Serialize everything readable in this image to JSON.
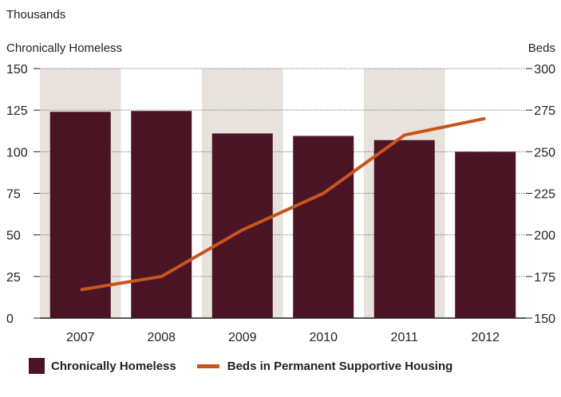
{
  "chart_data": {
    "type": "bar+line",
    "units_label": "Thousands",
    "left_axis_title": "Chronically Homeless",
    "right_axis_title": "Beds",
    "categories": [
      "2007",
      "2008",
      "2009",
      "2010",
      "2011",
      "2012"
    ],
    "left_ticks": [
      "0",
      "25",
      "50",
      "75",
      "100",
      "125",
      "150"
    ],
    "right_ticks": [
      "150",
      "175",
      "200",
      "225",
      "250",
      "275",
      "300"
    ],
    "left_ylim": [
      0,
      150
    ],
    "right_ylim": [
      150,
      300
    ],
    "series": [
      {
        "name": "Chronically Homeless",
        "type": "bar",
        "axis": "left",
        "values": [
          124,
          124.5,
          111,
          109.5,
          107,
          100
        ]
      },
      {
        "name": "Beds in Permanent Supportive Housing",
        "type": "line",
        "axis": "right",
        "values": [
          167,
          175,
          203,
          225,
          260,
          270
        ]
      }
    ],
    "shaded_bands": [
      "2007",
      "2009",
      "2011"
    ],
    "grid": "horizontal dotted",
    "legend_position": "bottom-left"
  },
  "colors": {
    "bar": "#4a1424",
    "line": "#c8541f",
    "band": "#e7e2dc",
    "grid": "#7a7a7a",
    "axis": "#222222"
  }
}
